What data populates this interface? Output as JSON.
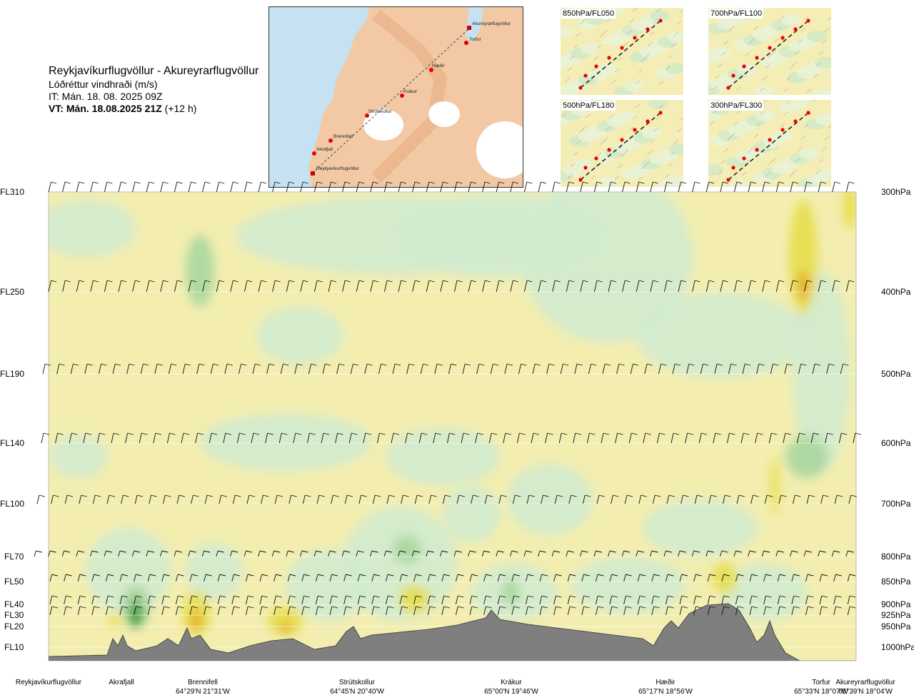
{
  "header": {
    "route": "Reykjavíkurflugvöllur - Akureyrarflugvöllur",
    "quantity": "Lóðréttur vindhraði (m/s)",
    "issue_time": "IT: Mán. 18. 08. 2025 09Z",
    "valid_time": "VT: Mán. 18.08.2025 21Z",
    "lead": "(+12 h)"
  },
  "map": {
    "waypoints": [
      "Akureyrarflugvöllur",
      "Torfur",
      "Hæðir",
      "Krákur",
      "Strútskollur",
      "Brennifell",
      "Akrafjall",
      "Reykjavíkurflugvöllur"
    ]
  },
  "insets": [
    "850hPa/FL050",
    "700hPa/FL100",
    "500hPa/FL180",
    "300hPa/FL300"
  ],
  "colors": {
    "sea": "#c6e1f2",
    "land": "#f2c9a4",
    "terrain": "#7f7f7f",
    "up_weak": "#f3eeb0",
    "up_mid": "#e7dd4a",
    "up_strong": "#e6a32a",
    "down_weak": "#d2ebcf",
    "down_mid": "#a8d6a0",
    "down_strong": "#3c9b3c"
  },
  "chart_data": {
    "type": "heatmap",
    "description_variable": "Lóðréttur vindhraði (m/s)",
    "flight_levels": [
      "FL310",
      "FL250",
      "FL190",
      "FL140",
      "FL100",
      "FL70",
      "FL50",
      "FL40",
      "FL30",
      "FL20",
      "FL10"
    ],
    "pressure_levels": [
      "300hPa",
      "400hPa",
      "500hPa",
      "600hPa",
      "700hPa",
      "800hPa",
      "850hPa",
      "900hPa",
      "925hPa",
      "950hPa",
      "1000hPa"
    ],
    "waypoints": [
      {
        "name": "Reykjavíkurflugvöllur",
        "coord": ""
      },
      {
        "name": "Akrafjall",
        "coord": ""
      },
      {
        "name": "Brennifell",
        "coord": "64°29'N 21°31'W"
      },
      {
        "name": "Strútskollur",
        "coord": "64°45'N 20°40'W"
      },
      {
        "name": "Krákur",
        "coord": "65°00'N 19°46'W"
      },
      {
        "name": "Hæðir",
        "coord": "65°17'N 18°56'W"
      },
      {
        "name": "Torfur",
        "coord": "65°33'N 18°07'W"
      },
      {
        "name": "Akureyrarflugvöllur",
        "coord": "65°39'N 18°04'W"
      }
    ]
  }
}
